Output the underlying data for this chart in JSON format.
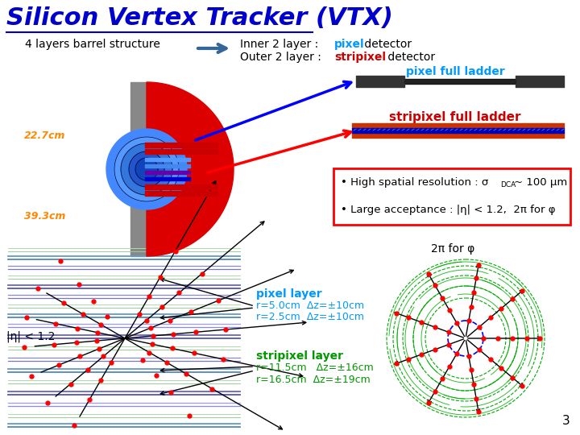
{
  "title": "Silicon Vertex Tracker (VTX)",
  "title_color": "#0000cc",
  "title_fontsize": 22,
  "bg_color": "#ffffff",
  "text_barrel": "4 layers barrel structure",
  "text_pixel_ladder": "pixel full ladder",
  "text_stripixel_ladder": "stripixel full ladder",
  "text_22cm": "22.7cm",
  "text_39cm": "39.3cm",
  "bullet1": "• High spatial resolution : σ",
  "bullet1_sub": "DCA",
  "bullet1_end": "~ 100 μm",
  "bullet2": "• Large acceptance : |η| < 1.2,  2π for φ",
  "text_2pi": "2π for φ",
  "text_eta": "|η| < 1.2",
  "text_pixel_layer": "pixel layer",
  "text_r1": "r=5.0cm  Δz=±10cm",
  "text_r2": "r=2.5cm  Δz=±10cm",
  "text_stripixel_layer": "stripixel layer",
  "text_r3": "r=11.5cm   Δz=±16cm",
  "text_r4": "r=16.5cm  Δz=±19cm",
  "text_3": "3",
  "pixel_color": "#0099ff",
  "stripixel_color": "#cc0000",
  "green_color": "#009900",
  "orange_color": "#ff8800",
  "blue_color": "#0000cc",
  "arrow_blue": "#336699"
}
